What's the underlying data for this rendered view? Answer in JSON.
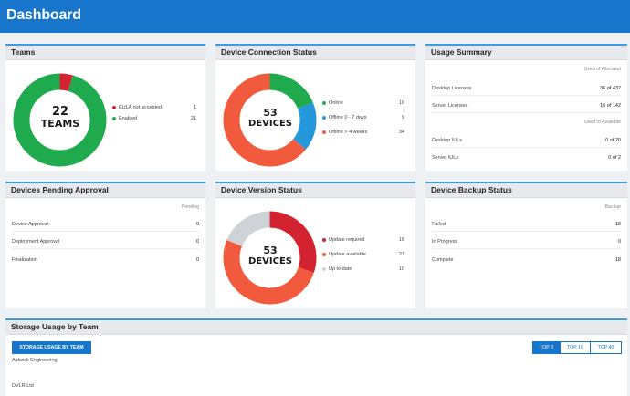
{
  "header": {
    "title": "Dashboard"
  },
  "colors": {
    "accent": "#1776cc",
    "green": "#1fab4d",
    "red": "#d32331",
    "orange": "#f15a3c",
    "blue": "#2597db",
    "gray": "#cfd3d8"
  },
  "teams": {
    "title": "Teams",
    "center_value": "22",
    "center_label": "TEAMS",
    "legend": [
      {
        "label": "EULA not accepted",
        "value": "1",
        "color": "#d32331"
      },
      {
        "label": "Enabled",
        "value": "21",
        "color": "#1fab4d"
      }
    ]
  },
  "connection": {
    "title": "Device Connection Status",
    "center_value": "53",
    "center_label": "DEVICES",
    "legend": [
      {
        "label": "Online",
        "value": "10",
        "color": "#1fab4d"
      },
      {
        "label": "Offline 0 - 7 days",
        "value": "9",
        "color": "#2597db"
      },
      {
        "label": "Offline > 4 weeks",
        "value": "34",
        "color": "#f15a3c"
      }
    ]
  },
  "usage": {
    "title": "Usage Summary",
    "allocated_header": "Used of Allocated",
    "available_header": "Used of Available",
    "rows_allocated": [
      {
        "label": "Desktop Licenses",
        "value": "36 of 437"
      },
      {
        "label": "Server Licenses",
        "value": "16 of 142"
      }
    ],
    "rows_available": [
      {
        "label": "Desktop IULs",
        "value": "0 of 20"
      },
      {
        "label": "Server IULs",
        "value": "0 of 2"
      }
    ]
  },
  "pending": {
    "title": "Devices Pending Approval",
    "header": "Pending",
    "rows": [
      {
        "label": "Device Approval",
        "value": "0"
      },
      {
        "label": "Deployment Approval",
        "value": "0"
      },
      {
        "label": "Finalization",
        "value": "0"
      }
    ]
  },
  "version": {
    "title": "Device Version Status",
    "center_value": "53",
    "center_label": "DEVICES",
    "legend": [
      {
        "label": "Update required",
        "value": "16",
        "color": "#d32331"
      },
      {
        "label": "Update available",
        "value": "27",
        "color": "#f15a3c"
      },
      {
        "label": "Up to date",
        "value": "10",
        "color": "#cfd3d8"
      }
    ]
  },
  "backup": {
    "title": "Device Backup Status",
    "header": "Backup",
    "rows": [
      {
        "label": "Failed",
        "value": "18"
      },
      {
        "label": "In Progress",
        "value": "0"
      },
      {
        "label": "Complete",
        "value": "18"
      }
    ]
  },
  "storage": {
    "title": "Storage Usage by Team",
    "button_label": "STORAGE USAGE BY TEAM",
    "toggles": [
      "TOP 3",
      "TOP 10",
      "TOP 40"
    ],
    "active_toggle": "TOP 3",
    "teams": [
      "Aldwick Engineering",
      "DVLR Ltd"
    ]
  }
}
